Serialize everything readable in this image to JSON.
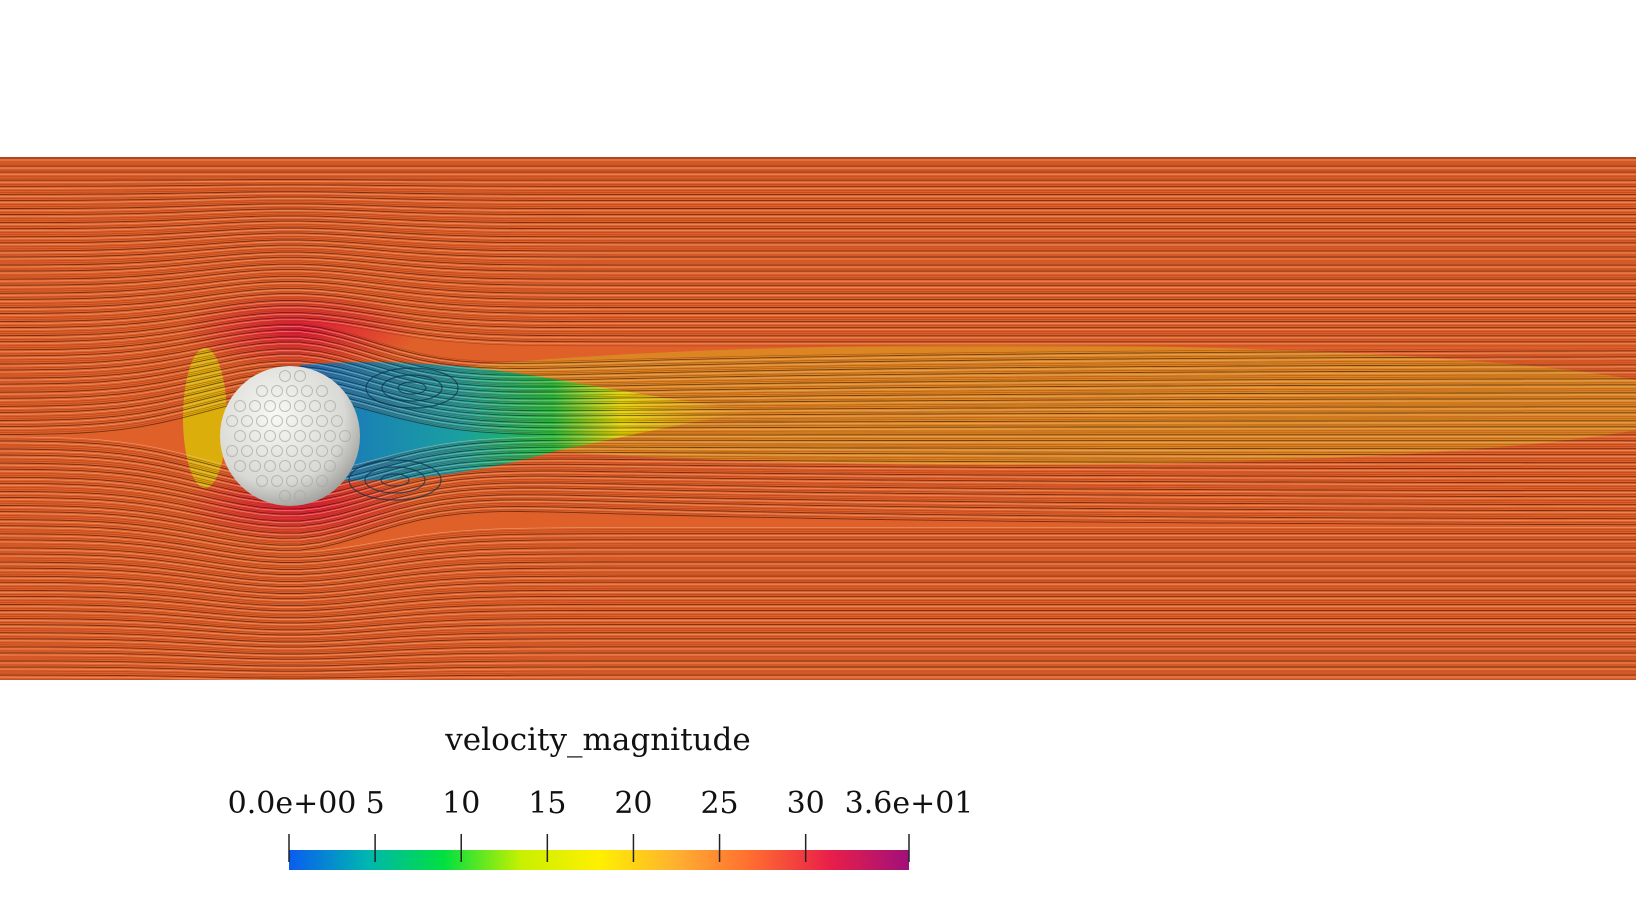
{
  "colorbar": {
    "title": "velocity_magnitude",
    "range": [
      0,
      36
    ],
    "ticks": [
      {
        "value": 0,
        "label": "0.0e+00"
      },
      {
        "value": 5,
        "label": "5"
      },
      {
        "value": 10,
        "label": "10"
      },
      {
        "value": 15,
        "label": "15"
      },
      {
        "value": 20,
        "label": "20"
      },
      {
        "value": 25,
        "label": "25"
      },
      {
        "value": 30,
        "label": "30"
      },
      {
        "value": 36,
        "label": "3.6e+01"
      }
    ],
    "colors": [
      "#0a5cf0",
      "#00b5b0",
      "#00e040",
      "#c8f000",
      "#fff000",
      "#ffb030",
      "#ff6a30",
      "#e81e4a",
      "#a0107a"
    ]
  },
  "scene": {
    "object": "golf-ball",
    "freestream_color": "#e0602a",
    "wake_colors": [
      "#1a7fc0",
      "#10b070",
      "#d8d800"
    ]
  }
}
